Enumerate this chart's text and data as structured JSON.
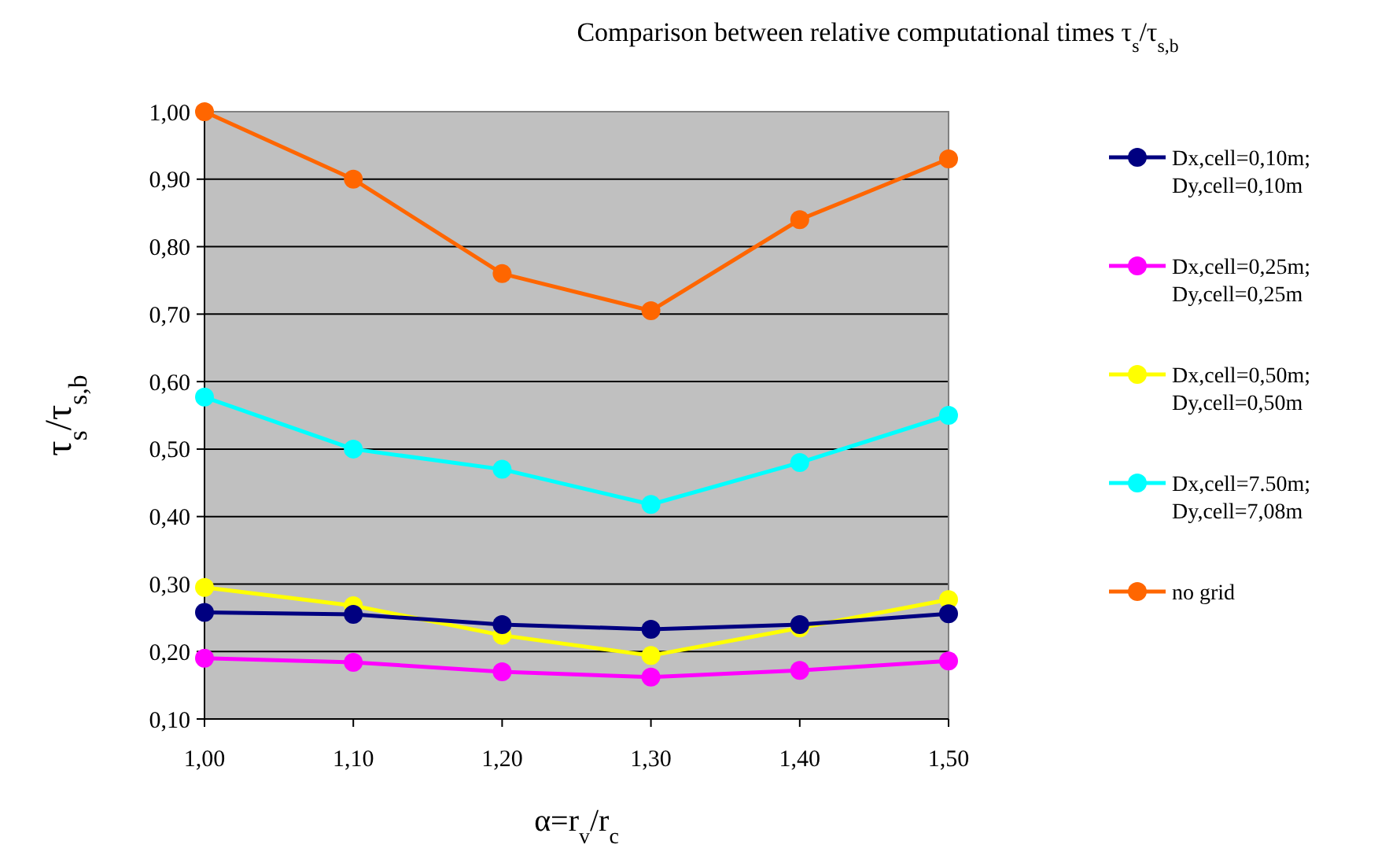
{
  "chart_data": {
    "type": "line",
    "title": "Comparison between relative computational times τ$_{s}$/τ$_{s,b}$",
    "xlabel": "α=r$_{v}$/r$_{c}$",
    "ylabel": "τ$_{s}$/τ$_{s,b}$",
    "x": [
      1.0,
      1.1,
      1.2,
      1.3,
      1.4,
      1.5
    ],
    "xlim": [
      1.0,
      1.5
    ],
    "xticks": [
      {
        "value": 1.0,
        "label": "1,00"
      },
      {
        "value": 1.1,
        "label": "1,10"
      },
      {
        "value": 1.2,
        "label": "1,20"
      },
      {
        "value": 1.3,
        "label": "1,30"
      },
      {
        "value": 1.4,
        "label": "1,40"
      },
      {
        "value": 1.5,
        "label": "1,50"
      }
    ],
    "ylim": [
      0.1,
      1.0
    ],
    "yticks": [
      {
        "value": 0.1,
        "label": "0,10"
      },
      {
        "value": 0.2,
        "label": "0,20"
      },
      {
        "value": 0.3,
        "label": "0,30"
      },
      {
        "value": 0.4,
        "label": "0,40"
      },
      {
        "value": 0.5,
        "label": "0,50"
      },
      {
        "value": 0.6,
        "label": "0,60"
      },
      {
        "value": 0.7,
        "label": "0,70"
      },
      {
        "value": 0.8,
        "label": "0,80"
      },
      {
        "value": 0.9,
        "label": "0,90"
      },
      {
        "value": 1.0,
        "label": "1,00"
      }
    ],
    "grid": "y",
    "legend": "right",
    "marker": "circle",
    "line_style": "solid",
    "series": [
      {
        "name": "Dx,cell=0,10m; Dy,cell=0,10m",
        "color": "#000080",
        "values": [
          0.258,
          0.255,
          0.24,
          0.233,
          0.24,
          0.256
        ]
      },
      {
        "name": "Dx,cell=0,25m; Dy,cell=0,25m",
        "color": "#ff00ff",
        "values": [
          0.19,
          0.184,
          0.17,
          0.162,
          0.172,
          0.186
        ]
      },
      {
        "name": "Dx,cell=0,50m; Dy,cell=0,50m",
        "color": "#ffff00",
        "values": [
          0.295,
          0.268,
          0.224,
          0.194,
          0.235,
          0.277
        ]
      },
      {
        "name": "Dx,cell=7.50m; Dy,cell=7,08m",
        "color": "#00ffff",
        "values": [
          0.577,
          0.5,
          0.47,
          0.418,
          0.48,
          0.55
        ]
      },
      {
        "name": "no grid",
        "color": "#ff6600",
        "values": [
          1.0,
          0.9,
          0.76,
          0.705,
          0.84,
          0.93
        ]
      }
    ]
  }
}
